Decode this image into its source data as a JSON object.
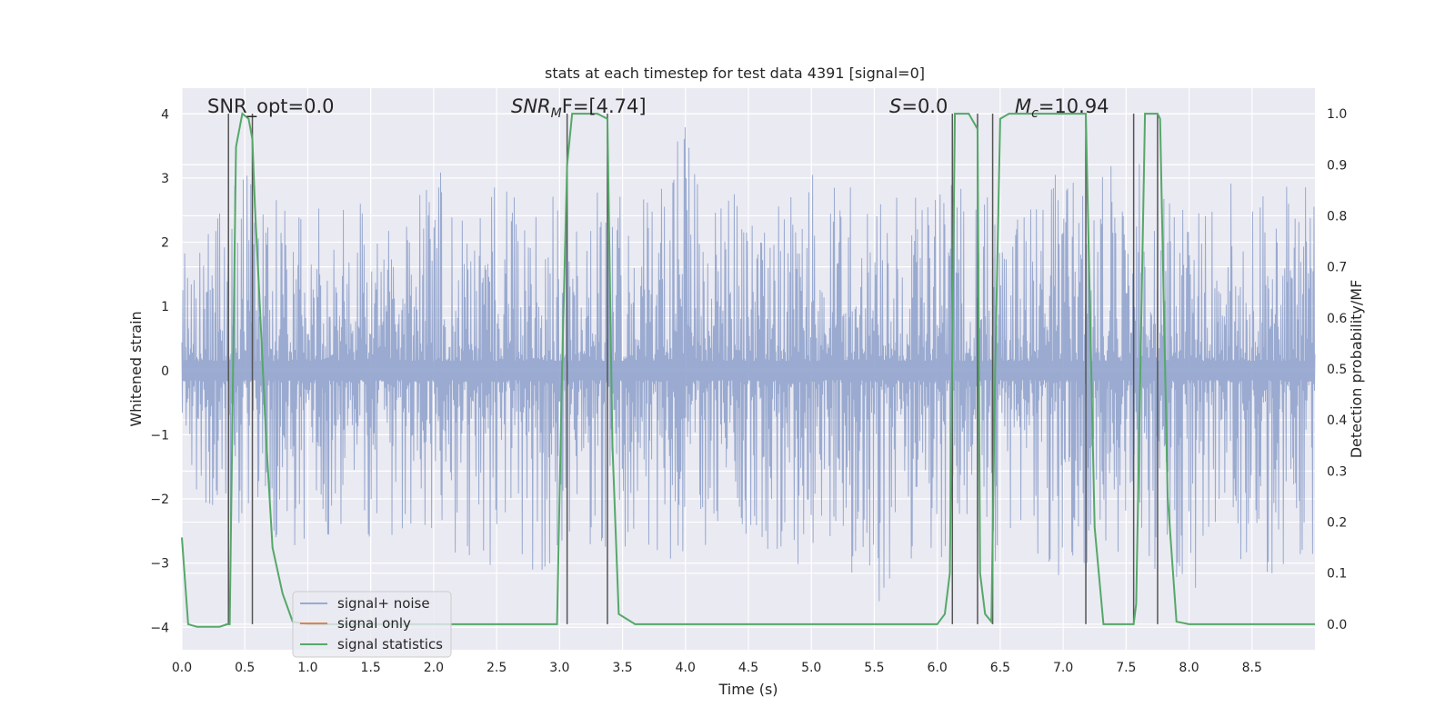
{
  "chart_data": {
    "type": "line",
    "title": "stats at each timestep for test data 4391 [signal=0]",
    "xlabel": "Time (s)",
    "ylabel_left": "Whitened strain",
    "ylabel_right": "Detection probability/MF",
    "xlim": [
      0.0,
      9.0
    ],
    "ylim_left": [
      -4.35,
      4.4
    ],
    "ylim_right": [
      -0.05,
      1.05
    ],
    "x_ticks": [
      "0.0",
      "0.5",
      "1.0",
      "1.5",
      "2.0",
      "2.5",
      "3.0",
      "3.5",
      "4.0",
      "4.5",
      "5.0",
      "5.5",
      "6.0",
      "6.5",
      "7.0",
      "7.5",
      "8.0",
      "8.5"
    ],
    "y_ticks_left": [
      "-4",
      "-3",
      "-2",
      "-1",
      "0",
      "1",
      "2",
      "3",
      "4"
    ],
    "y_ticks_right": [
      "0.0",
      "0.1",
      "0.2",
      "0.3",
      "0.4",
      "0.5",
      "0.6",
      "0.7",
      "0.8",
      "0.9",
      "1.0"
    ],
    "grid": true,
    "legend_position": "lower-left",
    "annotations": {
      "snr_opt": "SNR_opt=0.0",
      "snr_mf_main": "SNR",
      "snr_mf_sub": "M",
      "snr_mf_rest": "F=[4.74]",
      "s_main": "S",
      "s_rest": "=0.0",
      "mc_main": "M",
      "mc_sub": "c",
      "mc_rest": "=10.94"
    },
    "series": [
      {
        "name": "signal+ noise",
        "axis": "left",
        "color": "#8c9fca",
        "noise_envelope": {
          "x": [
            0.0,
            0.2,
            0.4,
            0.6,
            0.8,
            1.0,
            1.2,
            1.4,
            1.6,
            1.8,
            2.0,
            2.2,
            2.4,
            2.6,
            2.8,
            3.0,
            3.2,
            3.4,
            3.6,
            3.8,
            4.0,
            4.2,
            4.4,
            4.6,
            4.8,
            5.0,
            5.2,
            5.4,
            5.6,
            5.8,
            6.0,
            6.2,
            6.4,
            6.6,
            6.8,
            7.0,
            7.2,
            7.4,
            7.6,
            7.8,
            8.0,
            8.2,
            8.4,
            8.6,
            8.8,
            9.0
          ],
          "upper": [
            2.6,
            2.7,
            2.9,
            3.4,
            2.5,
            3.0,
            2.3,
            2.8,
            2.4,
            2.6,
            3.6,
            2.6,
            2.7,
            3.3,
            2.6,
            2.8,
            2.7,
            3.2,
            2.6,
            2.8,
            4.0,
            2.6,
            2.8,
            2.6,
            2.9,
            3.3,
            3.0,
            3.0,
            2.8,
            2.7,
            2.8,
            3.2,
            2.7,
            2.6,
            3.1,
            3.2,
            3.0,
            3.3,
            3.4,
            2.8,
            2.6,
            2.7,
            3.1,
            2.9,
            3.0,
            2.8
          ],
          "lower": [
            -2.0,
            -2.5,
            -2.6,
            -2.4,
            -2.7,
            -3.1,
            -2.8,
            -2.6,
            -3.0,
            -2.7,
            -2.5,
            -2.9,
            -3.4,
            -2.5,
            -3.2,
            -3.0,
            -2.9,
            -3.1,
            -3.0,
            -3.2,
            -2.8,
            -2.8,
            -2.5,
            -2.9,
            -3.3,
            -3.0,
            -3.0,
            -3.3,
            -4.0,
            -3.2,
            -3.0,
            -3.2,
            -3.2,
            -2.7,
            -3.0,
            -3.4,
            -3.2,
            -3.0,
            -3.3,
            -3.1,
            -3.5,
            -3.2,
            -3.1,
            -3.1,
            -3.6,
            -2.8
          ]
        }
      },
      {
        "name": "signal only",
        "axis": "left",
        "color": "#dd8452",
        "x": [],
        "y": []
      },
      {
        "name": "signal statistics",
        "axis": "right",
        "color": "#55a868",
        "x": [
          0.0,
          0.05,
          0.12,
          0.3,
          0.36,
          0.38,
          0.43,
          0.48,
          0.53,
          0.56,
          0.58,
          0.62,
          0.67,
          0.72,
          0.8,
          0.88,
          1.0,
          2.0,
          2.9,
          2.98,
          3.02,
          3.06,
          3.1,
          3.15,
          3.3,
          3.38,
          3.42,
          3.47,
          3.6,
          4.0,
          5.0,
          6.0,
          6.06,
          6.1,
          6.14,
          6.18,
          6.25,
          6.32,
          6.34,
          6.38,
          6.43,
          6.46,
          6.5,
          6.57,
          6.65,
          7.0,
          7.18,
          7.25,
          7.32,
          7.4,
          7.56,
          7.58,
          7.65,
          7.75,
          7.77,
          7.83,
          7.9,
          8.0,
          9.0
        ],
        "y": [
          0.17,
          0.0,
          -0.005,
          -0.005,
          0.0,
          0.0,
          0.935,
          1.0,
          0.99,
          0.95,
          0.82,
          0.62,
          0.36,
          0.15,
          0.06,
          0.005,
          0.0,
          0.0,
          0.0,
          0.0,
          0.5,
          0.9,
          1.0,
          1.0,
          1.0,
          0.99,
          0.35,
          0.02,
          0.0,
          0.0,
          0.0,
          0.0,
          0.02,
          0.1,
          1.0,
          1.0,
          1.0,
          0.97,
          0.1,
          0.02,
          0.005,
          0.5,
          0.99,
          1.0,
          1.0,
          1.0,
          1.0,
          0.19,
          0.0,
          0.0,
          0.0,
          0.04,
          1.0,
          1.0,
          0.99,
          0.25,
          0.005,
          0.0,
          0.0
        ]
      }
    ],
    "vertical_markers": [
      0.37,
      0.56,
      3.06,
      3.38,
      6.12,
      6.32,
      6.44,
      7.18,
      7.56,
      7.75
    ]
  }
}
